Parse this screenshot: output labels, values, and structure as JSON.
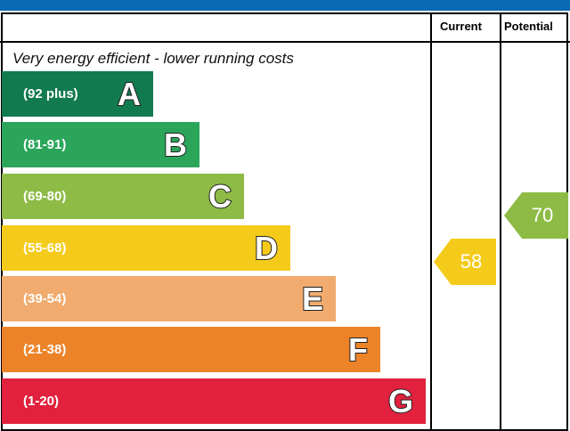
{
  "chart_data": {
    "type": "bar",
    "columns": {
      "current": "Current",
      "potential": "Potential"
    },
    "top_note": "Very energy efficient - lower running costs",
    "bands": [
      {
        "range": "(92 plus)",
        "letter": "A",
        "color": "#127a4f"
      },
      {
        "range": "(81-91)",
        "letter": "B",
        "color": "#2aa55a"
      },
      {
        "range": "(69-80)",
        "letter": "C",
        "color": "#8dbb46"
      },
      {
        "range": "(55-68)",
        "letter": "D",
        "color": "#f5cb1b"
      },
      {
        "range": "(39-54)",
        "letter": "E",
        "color": "#f1ab6e"
      },
      {
        "range": "(21-38)",
        "letter": "F",
        "color": "#ec8328"
      },
      {
        "range": "(1-20)",
        "letter": "G",
        "color": "#e1213d"
      }
    ],
    "current": {
      "value": "58",
      "band": "D",
      "color": "#f5cb1b"
    },
    "potential": {
      "value": "70",
      "band": "C",
      "color": "#8dbb46"
    }
  },
  "header_color": "#0a6ab3"
}
